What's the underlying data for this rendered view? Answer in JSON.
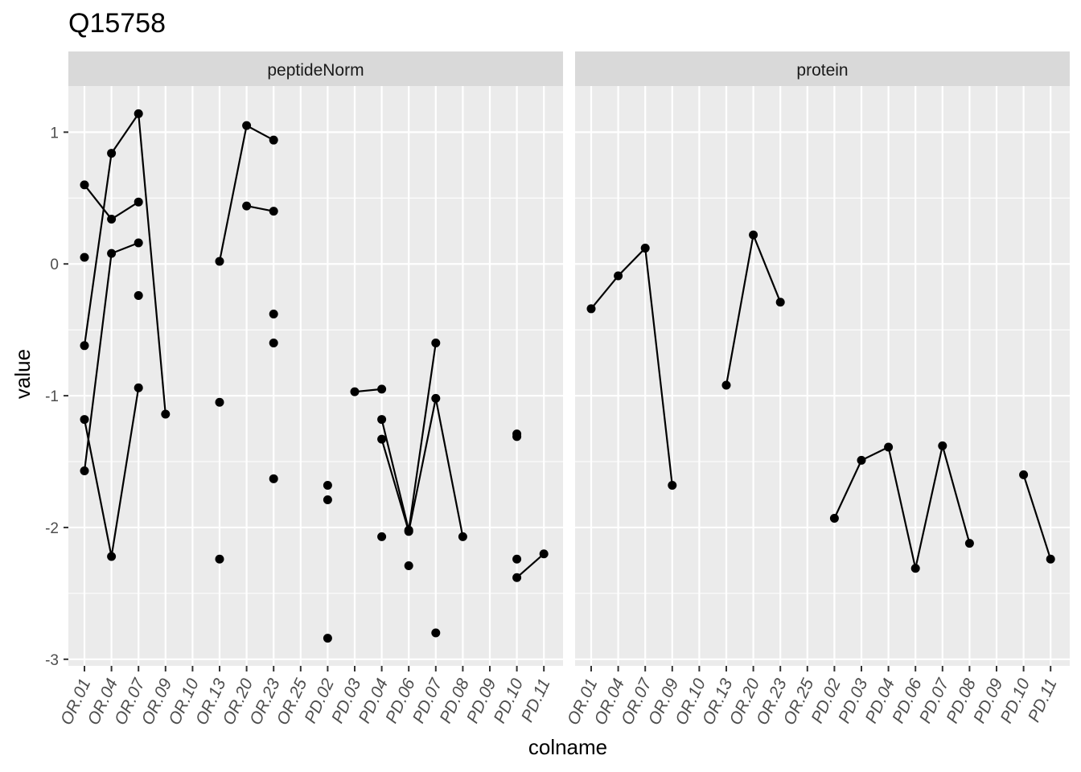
{
  "chart_data": {
    "type": "line",
    "title": "Q15758",
    "xlabel": "colname",
    "ylabel": "value",
    "ylim": [
      -3.05,
      1.35
    ],
    "yticks": [
      1,
      0,
      -1,
      -2,
      -3
    ],
    "ytick_labels": [
      "1",
      "0",
      "-1",
      "-2",
      "-3"
    ],
    "grid": true,
    "categories": [
      "OR.01",
      "OR.04",
      "OR.07",
      "OR.09",
      "OR.10",
      "OR.13",
      "OR.20",
      "OR.23",
      "OR.25",
      "PD.02",
      "PD.03",
      "PD.04",
      "PD.06",
      "PD.07",
      "PD.08",
      "PD.09",
      "PD.10",
      "PD.11"
    ],
    "panels": [
      {
        "name": "peptideNorm",
        "lines": [
          [
            [
              "OR.01",
              0.6
            ],
            [
              "OR.04",
              0.34
            ],
            [
              "OR.07",
              0.47
            ]
          ],
          [
            [
              "OR.01",
              -0.62
            ],
            [
              "OR.04",
              0.84
            ],
            [
              "OR.07",
              1.14
            ],
            [
              "OR.09",
              -1.14
            ]
          ],
          [
            [
              "OR.01",
              -1.57
            ],
            [
              "OR.04",
              0.08
            ],
            [
              "OR.07",
              0.16
            ]
          ],
          [
            [
              "OR.01",
              -1.18
            ],
            [
              "OR.04",
              -2.22
            ],
            [
              "OR.07",
              -0.94
            ]
          ],
          [
            [
              "OR.13",
              0.02
            ],
            [
              "OR.20",
              1.05
            ],
            [
              "OR.23",
              0.94
            ]
          ],
          [
            [
              "OR.20",
              0.44
            ],
            [
              "OR.23",
              0.4
            ]
          ],
          [
            [
              "PD.03",
              -0.97
            ],
            [
              "PD.04",
              -0.95
            ]
          ],
          [
            [
              "PD.04",
              -1.18
            ],
            [
              "PD.06",
              -2.02
            ],
            [
              "PD.07",
              -0.6
            ]
          ],
          [
            [
              "PD.04",
              -1.33
            ],
            [
              "PD.06",
              -2.03
            ],
            [
              "PD.07",
              -1.02
            ],
            [
              "PD.08",
              -2.07
            ]
          ],
          [
            [
              "PD.10",
              -2.38
            ],
            [
              "PD.11",
              -2.2
            ]
          ]
        ],
        "points": [
          [
            "OR.01",
            0.05
          ],
          [
            "OR.07",
            -0.24
          ],
          [
            "OR.13",
            -1.05
          ],
          [
            "OR.13",
            -2.24
          ],
          [
            "OR.23",
            -0.38
          ],
          [
            "OR.23",
            -0.6
          ],
          [
            "OR.23",
            -1.63
          ],
          [
            "PD.02",
            -1.68
          ],
          [
            "PD.02",
            -1.79
          ],
          [
            "PD.02",
            -2.84
          ],
          [
            "PD.04",
            -2.07
          ],
          [
            "PD.06",
            -2.29
          ],
          [
            "PD.07",
            -2.8
          ],
          [
            "PD.10",
            -1.29
          ],
          [
            "PD.10",
            -1.31
          ],
          [
            "PD.10",
            -2.24
          ]
        ]
      },
      {
        "name": "protein",
        "lines": [
          [
            [
              "OR.01",
              -0.34
            ],
            [
              "OR.04",
              -0.09
            ],
            [
              "OR.07",
              0.12
            ],
            [
              "OR.09",
              -1.68
            ]
          ],
          [
            [
              "OR.13",
              -0.92
            ],
            [
              "OR.20",
              0.22
            ],
            [
              "OR.23",
              -0.29
            ]
          ],
          [
            [
              "PD.02",
              -1.93
            ],
            [
              "PD.03",
              -1.49
            ],
            [
              "PD.04",
              -1.39
            ],
            [
              "PD.06",
              -2.31
            ],
            [
              "PD.07",
              -1.38
            ],
            [
              "PD.08",
              -2.12
            ]
          ],
          [
            [
              "PD.10",
              -1.6
            ],
            [
              "PD.11",
              -2.24
            ]
          ]
        ],
        "points": []
      }
    ]
  }
}
